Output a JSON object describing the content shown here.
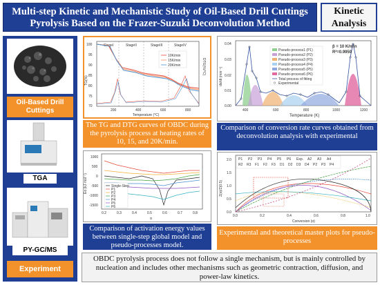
{
  "header": {
    "title_line1": "Multi-step Kinetic and Mechanistic Study of Oil-Based Drill Cuttings",
    "title_line2": "Pyrolysis Based on the Frazer-Suzuki Deconvolution Method",
    "badge_line1": "Kinetic",
    "badge_line2": "Analysis"
  },
  "left": {
    "sample_label": "Oil-Based Drill Cuttings",
    "tga_label": "TGA",
    "pygc_label": "PY-GC/MS",
    "experiment_label": "Experiment"
  },
  "tg_chart": {
    "caption": "The TG and DTG curves of OBDC during the pyrolysis process at heating rates of 10, 15, and 20K/min.",
    "xlabel": "Temperature (°C)",
    "ylabel_left": "TG(%)",
    "ylabel_right": "DTG(%/°C)",
    "stages": [
      "StageI",
      "StageII",
      "StageIII",
      "StageIV"
    ],
    "legend": [
      "10K/min",
      "15K/min",
      "20K/min"
    ],
    "x_ticks": [
      "200",
      "400",
      "600",
      "800"
    ],
    "y_ticks": [
      "100",
      "95",
      "90",
      "85",
      "80",
      "75",
      "70"
    ]
  },
  "deconv_chart": {
    "caption": "Comparison of conversion rate curves obtained from deconvolution analysis with experimental",
    "xlabel": "Temperature (K)",
    "ylabel": "dα/dt (min⁻¹)",
    "beta": "β = 10 K/min",
    "r2": "R²=0.9959",
    "legend": [
      "Pseudo-process1 (P1)",
      "Pseudo-process2 (P2)",
      "Pseudo-process3 (P3)",
      "Pseudo-process4 (P4)",
      "Pseudo-process5 (P5)",
      "Pseudo-process6 (P6)",
      "Total process of fitting",
      "Experimental"
    ],
    "x_ticks": [
      "400",
      "600",
      "800",
      "1000",
      "1200"
    ],
    "y_ticks": [
      "0.04",
      "0.03",
      "0.02",
      "0.01",
      "0.00"
    ]
  },
  "ea_chart": {
    "caption": "Comparison of activation energy values between single-step global model and pseudo-processes model.",
    "xlabel": "α",
    "ylabel": "Eα (kJ·mol⁻¹)",
    "legend": [
      "Single-Step",
      "P1",
      "P2",
      "P3",
      "P4",
      "P5",
      "P6"
    ],
    "x_ticks": [
      "0.2",
      "0.3",
      "0.4",
      "0.5",
      "0.6",
      "0.7",
      "0.8"
    ],
    "y_ticks": [
      "1000",
      "500",
      "0",
      "-500",
      "-1000",
      "-1500"
    ]
  },
  "master_chart": {
    "caption": "Experimental and theoretical master plots for pseudo-processes",
    "xlabel": "Conversion (α)",
    "ylabel": "Z(α)/Z(0.5)",
    "legend": [
      "P1",
      "P2",
      "P3",
      "P4",
      "P5",
      "P6",
      "Exp.",
      "A2",
      "A3",
      "A4",
      "R2",
      "R3",
      "F1",
      "F2",
      "F3",
      "D1",
      "D2",
      "D3",
      "D4",
      "P2",
      "P3",
      "P4"
    ],
    "x_ticks": [
      "0.0",
      "0.2",
      "0.4",
      "0.6",
      "0.8",
      "1.0"
    ],
    "y_ticks": [
      "2.0",
      "1.5",
      "1.0",
      "0.5",
      "0.0"
    ]
  },
  "conclusion": "OBDC pyrolysis process does not follow a single mechanism, but is mainly controlled by nucleation and includes other mechanisms such as geometric contraction, diffusion, and power-law kinetics.",
  "colors": {
    "navy": "#1f3f95",
    "orange": "#f3922a"
  }
}
